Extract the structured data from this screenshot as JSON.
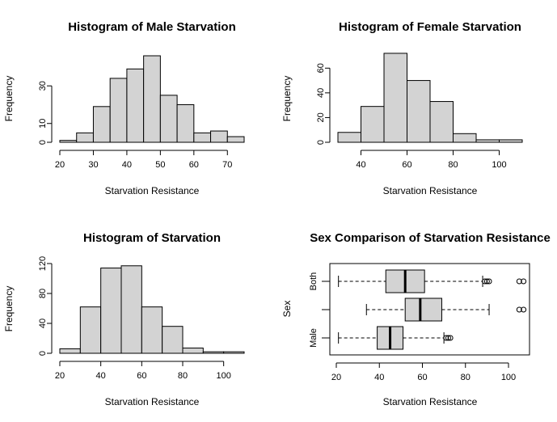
{
  "colors": {
    "bar_fill": "#d3d3d3",
    "stroke": "#000000",
    "background": "#ffffff"
  },
  "chart_data": [
    {
      "type": "bar",
      "title": "Histogram of Male Starvation",
      "xlabel": "Starvation Resistance",
      "ylabel": "Frequency",
      "bins": [
        [
          20,
          25
        ],
        [
          25,
          30
        ],
        [
          30,
          35
        ],
        [
          35,
          40
        ],
        [
          40,
          45
        ],
        [
          45,
          50
        ],
        [
          50,
          55
        ],
        [
          55,
          60
        ],
        [
          60,
          65
        ],
        [
          65,
          70
        ],
        [
          70,
          75
        ]
      ],
      "values": [
        1,
        5,
        19,
        34,
        39,
        46,
        25,
        20,
        5,
        6,
        3
      ],
      "xlim": [
        20,
        75
      ],
      "ylim": [
        0,
        46
      ],
      "xticks": [
        20,
        30,
        40,
        50,
        60,
        70
      ],
      "yticks": [
        0,
        10,
        30
      ]
    },
    {
      "type": "bar",
      "title": "Histogram of Female Starvation",
      "xlabel": "Starvation Resistance",
      "ylabel": "Frequency",
      "bins": [
        [
          30,
          40
        ],
        [
          40,
          50
        ],
        [
          50,
          60
        ],
        [
          60,
          70
        ],
        [
          70,
          80
        ],
        [
          80,
          90
        ],
        [
          90,
          100
        ],
        [
          100,
          110
        ]
      ],
      "values": [
        8,
        29,
        72,
        50,
        33,
        7,
        2,
        2
      ],
      "xlim": [
        30,
        110
      ],
      "ylim": [
        0,
        70
      ],
      "xticks": [
        40,
        60,
        80,
        100
      ],
      "yticks": [
        0,
        20,
        40,
        60
      ]
    },
    {
      "type": "bar",
      "title": "Histogram of Starvation",
      "xlabel": "Starvation Resistance",
      "ylabel": "Frequency",
      "bins": [
        [
          20,
          30
        ],
        [
          30,
          40
        ],
        [
          40,
          50
        ],
        [
          50,
          60
        ],
        [
          60,
          70
        ],
        [
          70,
          80
        ],
        [
          80,
          90
        ],
        [
          90,
          100
        ],
        [
          100,
          110
        ]
      ],
      "values": [
        6,
        62,
        114,
        117,
        62,
        36,
        7,
        2,
        2
      ],
      "xlim": [
        20,
        110
      ],
      "ylim": [
        0,
        120
      ],
      "xticks": [
        20,
        40,
        60,
        80,
        100
      ],
      "yticks": [
        0,
        40,
        80,
        120
      ]
    },
    {
      "type": "boxplot",
      "title": "Sex Comparison of Starvation Resistance",
      "xlabel": "Starvation Resistance",
      "ylabel": "Sex",
      "groups": [
        {
          "label": "Both",
          "whisker_low": 21,
          "q1": 43,
          "median": 52,
          "q3": 61,
          "whisker_high": 88,
          "outliers": [
            89,
            90,
            91,
            105,
            107
          ]
        },
        {
          "label": "",
          "whisker_low": 34,
          "q1": 52,
          "median": 59,
          "q3": 69,
          "whisker_high": 91,
          "outliers": [
            105,
            107
          ]
        },
        {
          "label": "Male",
          "whisker_low": 21,
          "q1": 39,
          "median": 45,
          "q3": 51,
          "whisker_high": 70,
          "outliers": [
            71,
            72,
            73
          ]
        }
      ],
      "xlim": [
        18,
        110
      ],
      "xticks": [
        20,
        40,
        60,
        80,
        100
      ]
    }
  ]
}
